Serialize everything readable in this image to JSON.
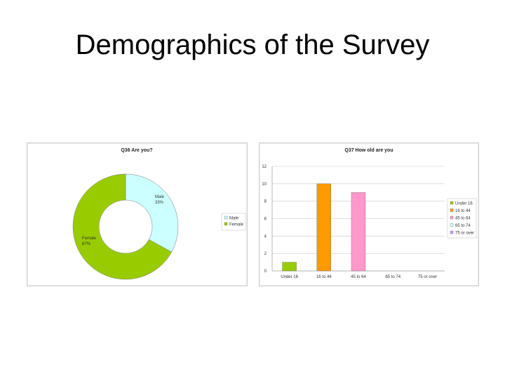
{
  "slide": {
    "title": "Demographics of the Survey"
  },
  "chart_data": [
    {
      "type": "pie",
      "title": "Q36 Are you?",
      "categories": [
        "Male",
        "Female"
      ],
      "values": [
        33,
        67
      ],
      "data_labels": [
        "Male\n33%",
        "Female\n67%"
      ],
      "colors": [
        "#ccffff",
        "#99cc00"
      ],
      "legend": {
        "placement": "right",
        "entries": [
          "Male",
          "Female"
        ]
      }
    },
    {
      "type": "bar",
      "title": "Q37 How old are you",
      "categories": [
        "Under 16",
        "16 to 44",
        "45 to 64",
        "65 to 74",
        "75 or over"
      ],
      "values": [
        1,
        10,
        9,
        0,
        0
      ],
      "colors": [
        "#99cc00",
        "#ff9900",
        "#ff99cc",
        "#ccffff",
        "#cc99ff"
      ],
      "ylim": [
        0,
        12
      ],
      "yticks": [
        "0",
        "2",
        "4",
        "6",
        "8",
        "10",
        "12"
      ],
      "grid": true,
      "legend": {
        "placement": "right",
        "entries": [
          "Under 16",
          "16 to 44",
          "45 to 64",
          "65 to 74",
          "75 or over"
        ]
      }
    }
  ]
}
